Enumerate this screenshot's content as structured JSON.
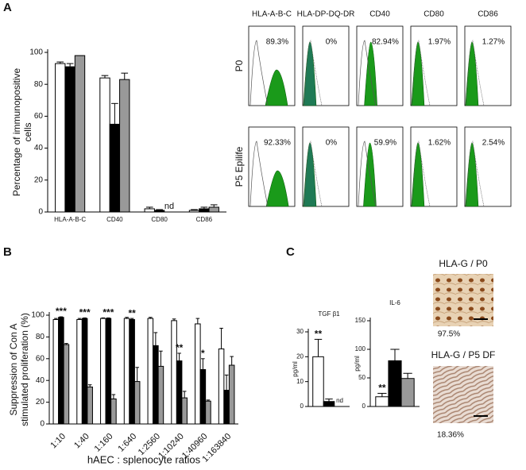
{
  "panels": {
    "a": "A",
    "b": "B",
    "c": "C"
  },
  "chart_data": [
    {
      "type": "bar",
      "ylabel": [
        "Percentage of immunopositive",
        "cells"
      ],
      "categories": [
        "HLA-A-B-C",
        "CD40",
        "CD80",
        "CD86"
      ],
      "ylim": [
        0,
        100
      ],
      "yticks": [
        0,
        20,
        40,
        60,
        80,
        100
      ],
      "series": [
        {
          "color": "#ffffff",
          "values": [
            93,
            84,
            2,
            1
          ],
          "errors": [
            1,
            1.5,
            1,
            0.5
          ]
        },
        {
          "color": "#000000",
          "values": [
            91,
            55,
            1,
            2
          ],
          "errors": [
            2,
            13,
            0.5,
            1
          ]
        },
        {
          "color": "#999999",
          "values": [
            98,
            83,
            null,
            3
          ],
          "errors": [
            0,
            4,
            null,
            1.5
          ],
          "value_labels": [
            null,
            null,
            "nd",
            null
          ]
        }
      ]
    },
    {
      "type": "bar",
      "ylabel": [
        "Suppression of Con A",
        "stimulated proliferation (%)"
      ],
      "xlabel": "hAEC : splenocyte ratios",
      "categories": [
        "1:10",
        "1:40",
        "1:160",
        "1:640",
        "1:2560",
        "1:10240",
        "1:40960",
        "1:163840"
      ],
      "ylim": [
        0,
        100
      ],
      "yticks": [
        0,
        20,
        40,
        60,
        80,
        100
      ],
      "series": [
        {
          "color": "#ffffff",
          "values": [
            96,
            96,
            97,
            97,
            97,
            95,
            92,
            69
          ],
          "errors": [
            1,
            1,
            0.5,
            1,
            1,
            1.5,
            5,
            19
          ]
        },
        {
          "color": "#000000",
          "values": [
            98,
            97,
            97,
            96,
            72,
            58,
            50,
            31
          ],
          "errors": [
            0.5,
            0.5,
            0.5,
            1,
            12,
            7,
            10,
            14
          ],
          "stars": [
            "***",
            "***",
            "***",
            "**",
            null,
            "**",
            "*",
            null
          ]
        },
        {
          "color": "#999999",
          "values": [
            73,
            34,
            23,
            39,
            53,
            24,
            21,
            54
          ],
          "errors": [
            1,
            2,
            4,
            13,
            14,
            6,
            1,
            8
          ]
        }
      ]
    },
    {
      "type": "bar",
      "title": "TGF β1",
      "ylabel": "pg/ml",
      "ylim": [
        0,
        30
      ],
      "yticks": [
        0,
        10,
        20,
        30
      ],
      "series": [
        {
          "color": "#ffffff",
          "values": [
            20
          ],
          "errors": [
            7
          ],
          "stars": [
            "**"
          ]
        },
        {
          "color": "#000000",
          "values": [
            2
          ],
          "errors": [
            1
          ]
        },
        {
          "color": "#999999",
          "values": [
            null
          ],
          "errors": [
            null
          ],
          "value_labels": [
            "nd"
          ]
        }
      ]
    },
    {
      "type": "bar",
      "title": "IL-6",
      "ylabel": "pg/ml",
      "ylim": [
        0,
        150
      ],
      "yticks": [
        0,
        50,
        100,
        150
      ],
      "series": [
        {
          "color": "#ffffff",
          "values": [
            17
          ],
          "errors": [
            6
          ],
          "stars": [
            "**"
          ]
        },
        {
          "color": "#000000",
          "values": [
            80
          ],
          "errors": [
            20
          ]
        },
        {
          "color": "#999999",
          "values": [
            49
          ],
          "errors": [
            9
          ]
        }
      ]
    }
  ],
  "flow_cytometry": {
    "columns": [
      "HLA-A-B-C",
      "HLA-DP-DQ-DR",
      "CD40",
      "CD80",
      "CD86"
    ],
    "rows": [
      {
        "label": "P0",
        "values": [
          "89.3%",
          "0%",
          "82.94%",
          "1.97%",
          "1.27%"
        ]
      },
      {
        "label": "P5 Epilife",
        "values": [
          "92.33%",
          "0%",
          "59.9%",
          "1.62%",
          "2.54%"
        ]
      }
    ]
  },
  "images": [
    {
      "title": "HLA-G / P0",
      "caption": "97.5%"
    },
    {
      "title": "HLA-G / P5 DF",
      "caption": "18.36%"
    }
  ]
}
